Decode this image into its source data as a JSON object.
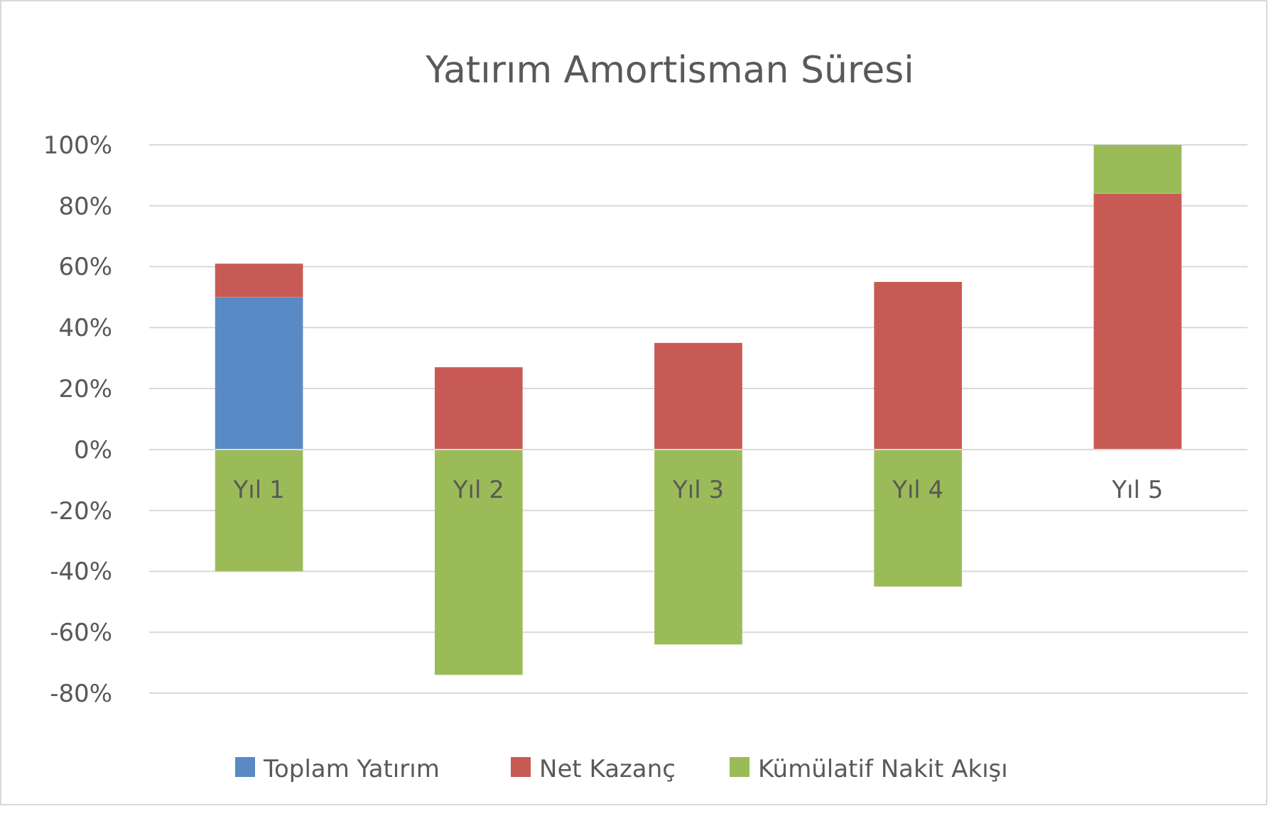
{
  "chart_data": {
    "type": "bar",
    "title": "Yatırım Amortisman Süresi",
    "categories": [
      "Yıl 1",
      "Yıl 2",
      "Yıl 3",
      "Yıl 4",
      "Yıl 5"
    ],
    "stacked": true,
    "series": [
      {
        "name": "Toplam Yatırım",
        "color": "#5a8ac6",
        "values": [
          50,
          null,
          null,
          null,
          null
        ]
      },
      {
        "name": "Net Kazanç",
        "color": "#c85a55",
        "values": [
          11,
          27,
          35,
          55,
          84
        ]
      },
      {
        "name": "Kümülatif Nakit Akışı",
        "color": "#9bbb59",
        "values": [
          -40,
          -74,
          -64,
          -45,
          16
        ]
      }
    ],
    "ylim": [
      -80,
      100
    ],
    "yticks": [
      {
        "value": -80,
        "label": "-80%"
      },
      {
        "value": -60,
        "label": "-60%"
      },
      {
        "value": -40,
        "label": "-40%"
      },
      {
        "value": -20,
        "label": "-20%"
      },
      {
        "value": 0,
        "label": "0%"
      },
      {
        "value": 20,
        "label": "20%"
      },
      {
        "value": 40,
        "label": "40%"
      },
      {
        "value": 60,
        "label": "60%"
      },
      {
        "value": 80,
        "label": "80%"
      },
      {
        "value": 100,
        "label": "100%"
      }
    ],
    "grid": "y",
    "legend": "bottom"
  }
}
